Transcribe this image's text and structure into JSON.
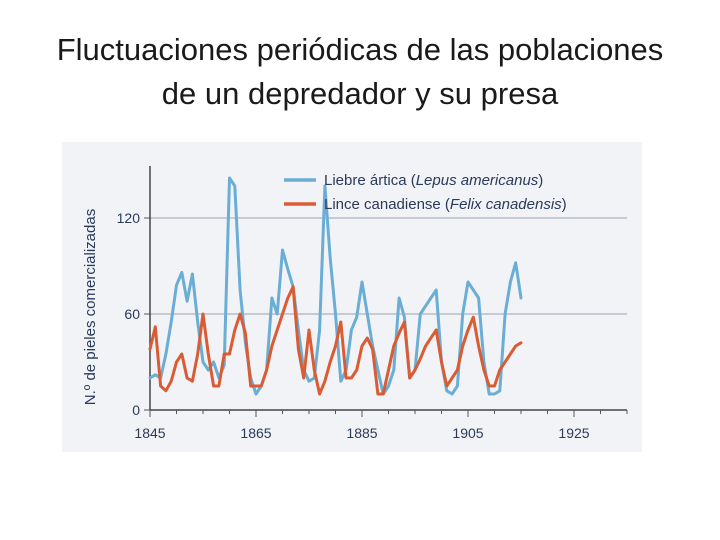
{
  "slide": {
    "title_line1": "Fluctuaciones periódicas de las poblaciones",
    "title_line2": "de un depredador y su presa"
  },
  "chart_data": {
    "type": "line",
    "title": "",
    "xlabel": "",
    "ylabel": "N.º de pieles comercializadas",
    "xlim": [
      1845,
      1935
    ],
    "ylim": [
      0,
      150
    ],
    "x_ticks": [
      "1845",
      "1865",
      "1885",
      "1905",
      "1925"
    ],
    "y_ticks": [
      "0",
      "60",
      "120"
    ],
    "grid": "horizontal",
    "legend_position": "top-right",
    "colors": {
      "hare": "#6aaed6",
      "lynx": "#d95c35"
    },
    "series": [
      {
        "name": "Liebre ártica",
        "name_italic": "Lepus americanus",
        "color": "#6aaed6",
        "points": [
          [
            1845,
            20
          ],
          [
            1846,
            22
          ],
          [
            1847,
            20
          ],
          [
            1848,
            35
          ],
          [
            1849,
            55
          ],
          [
            1850,
            78
          ],
          [
            1851,
            86
          ],
          [
            1852,
            68
          ],
          [
            1853,
            85
          ],
          [
            1854,
            55
          ],
          [
            1855,
            30
          ],
          [
            1856,
            25
          ],
          [
            1857,
            30
          ],
          [
            1858,
            20
          ],
          [
            1859,
            28
          ],
          [
            1860,
            145
          ],
          [
            1861,
            140
          ],
          [
            1862,
            75
          ],
          [
            1863,
            42
          ],
          [
            1864,
            20
          ],
          [
            1865,
            10
          ],
          [
            1866,
            15
          ],
          [
            1867,
            25
          ],
          [
            1868,
            70
          ],
          [
            1869,
            60
          ],
          [
            1870,
            100
          ],
          [
            1871,
            88
          ],
          [
            1872,
            77
          ],
          [
            1873,
            50
          ],
          [
            1874,
            25
          ],
          [
            1875,
            18
          ],
          [
            1876,
            20
          ],
          [
            1877,
            50
          ],
          [
            1878,
            140
          ],
          [
            1879,
            95
          ],
          [
            1880,
            60
          ],
          [
            1881,
            18
          ],
          [
            1882,
            25
          ],
          [
            1883,
            50
          ],
          [
            1884,
            58
          ],
          [
            1885,
            80
          ],
          [
            1886,
            60
          ],
          [
            1887,
            40
          ],
          [
            1888,
            25
          ],
          [
            1889,
            10
          ],
          [
            1890,
            15
          ],
          [
            1891,
            25
          ],
          [
            1892,
            70
          ],
          [
            1893,
            58
          ],
          [
            1894,
            20
          ],
          [
            1895,
            25
          ],
          [
            1896,
            60
          ],
          [
            1897,
            65
          ],
          [
            1898,
            70
          ],
          [
            1899,
            75
          ],
          [
            1900,
            30
          ],
          [
            1901,
            12
          ],
          [
            1902,
            10
          ],
          [
            1903,
            15
          ],
          [
            1904,
            60
          ],
          [
            1905,
            80
          ],
          [
            1906,
            75
          ],
          [
            1907,
            70
          ],
          [
            1908,
            30
          ],
          [
            1909,
            10
          ],
          [
            1910,
            10
          ],
          [
            1911,
            12
          ],
          [
            1912,
            60
          ],
          [
            1913,
            80
          ],
          [
            1914,
            92
          ],
          [
            1915,
            70
          ]
        ]
      },
      {
        "name": "Lince canadiense",
        "name_italic": "Felix canadensis",
        "color": "#d95c35",
        "points": [
          [
            1845,
            38
          ],
          [
            1846,
            52
          ],
          [
            1847,
            15
          ],
          [
            1848,
            12
          ],
          [
            1849,
            18
          ],
          [
            1850,
            30
          ],
          [
            1851,
            35
          ],
          [
            1852,
            20
          ],
          [
            1853,
            18
          ],
          [
            1854,
            35
          ],
          [
            1855,
            60
          ],
          [
            1856,
            35
          ],
          [
            1857,
            15
          ],
          [
            1858,
            15
          ],
          [
            1859,
            35
          ],
          [
            1860,
            35
          ],
          [
            1861,
            50
          ],
          [
            1862,
            60
          ],
          [
            1863,
            48
          ],
          [
            1864,
            15
          ],
          [
            1865,
            15
          ],
          [
            1866,
            15
          ],
          [
            1867,
            25
          ],
          [
            1868,
            40
          ],
          [
            1869,
            50
          ],
          [
            1870,
            60
          ],
          [
            1871,
            70
          ],
          [
            1872,
            77
          ],
          [
            1873,
            38
          ],
          [
            1874,
            20
          ],
          [
            1875,
            50
          ],
          [
            1876,
            25
          ],
          [
            1877,
            10
          ],
          [
            1878,
            18
          ],
          [
            1879,
            30
          ],
          [
            1880,
            40
          ],
          [
            1881,
            55
          ],
          [
            1882,
            20
          ],
          [
            1883,
            20
          ],
          [
            1884,
            25
          ],
          [
            1885,
            40
          ],
          [
            1886,
            45
          ],
          [
            1887,
            38
          ],
          [
            1888,
            10
          ],
          [
            1889,
            10
          ],
          [
            1890,
            25
          ],
          [
            1891,
            40
          ],
          [
            1892,
            48
          ],
          [
            1893,
            55
          ],
          [
            1894,
            20
          ],
          [
            1895,
            25
          ],
          [
            1896,
            32
          ],
          [
            1897,
            40
          ],
          [
            1898,
            45
          ],
          [
            1899,
            50
          ],
          [
            1900,
            30
          ],
          [
            1901,
            15
          ],
          [
            1902,
            20
          ],
          [
            1903,
            25
          ],
          [
            1904,
            40
          ],
          [
            1905,
            50
          ],
          [
            1906,
            58
          ],
          [
            1907,
            40
          ],
          [
            1908,
            25
          ],
          [
            1909,
            15
          ],
          [
            1910,
            15
          ],
          [
            1911,
            25
          ],
          [
            1912,
            30
          ],
          [
            1913,
            35
          ],
          [
            1914,
            40
          ],
          [
            1915,
            42
          ]
        ]
      }
    ]
  }
}
